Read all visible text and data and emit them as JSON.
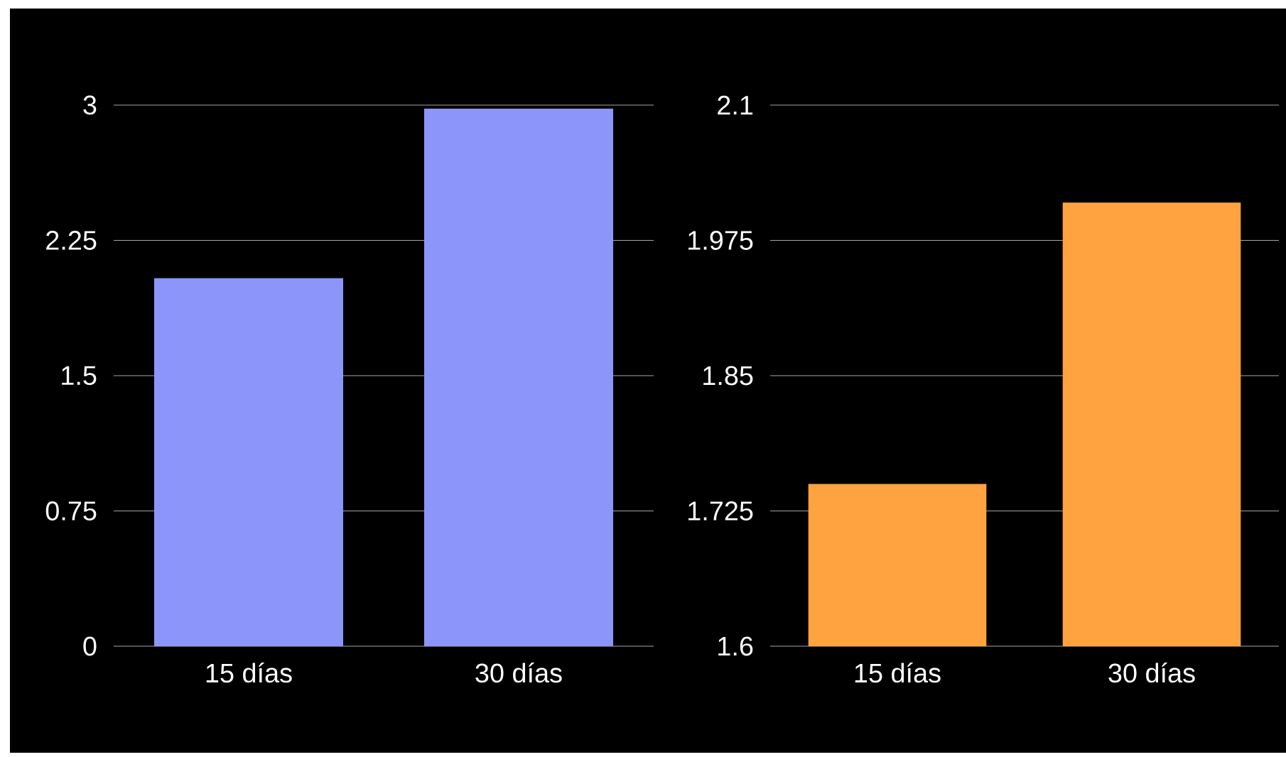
{
  "chart_data": [
    {
      "type": "bar",
      "categories": [
        "15 días",
        "30 días"
      ],
      "values": [
        2.04,
        2.98
      ],
      "color": "#8c96fa",
      "ylim": [
        0,
        3
      ],
      "yticks": [
        0,
        0.75,
        1.5,
        2.25,
        3
      ],
      "grid": "y"
    },
    {
      "type": "bar",
      "categories": [
        "15 días",
        "30 días"
      ],
      "values": [
        1.75,
        2.01
      ],
      "color": "#ffa340",
      "ylim": [
        1.6,
        2.1
      ],
      "yticks": [
        1.6,
        1.725,
        1.85,
        1.975,
        2.1
      ],
      "grid": "y"
    }
  ]
}
